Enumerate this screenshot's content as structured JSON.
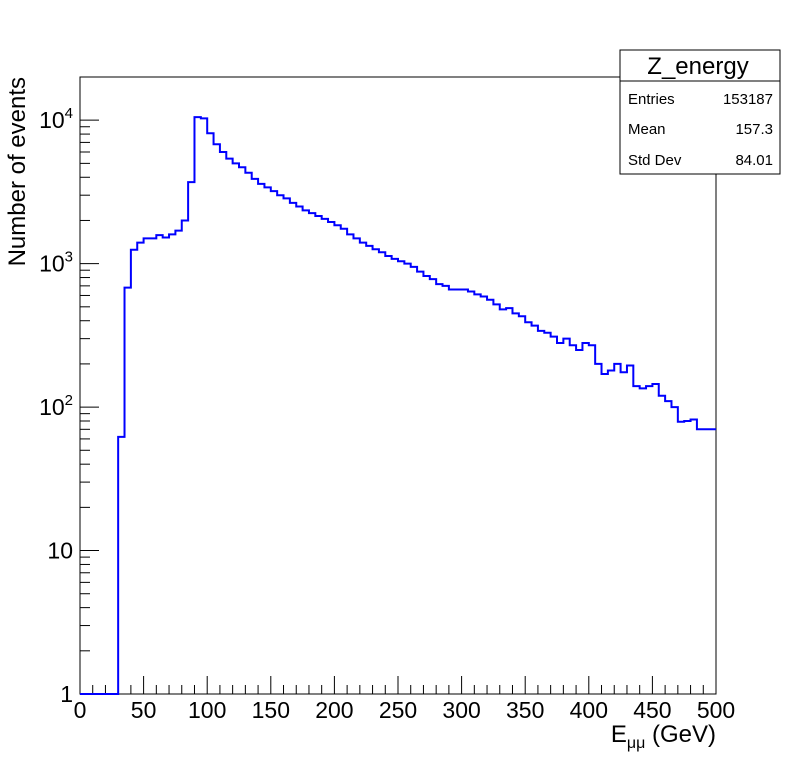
{
  "chart_data": {
    "type": "histogram",
    "title": "",
    "xlabel": "E",
    "xlabel_subscript": "μμ",
    "xlabel_unit": " (GeV)",
    "ylabel": "Number of events",
    "xlim": [
      0,
      500
    ],
    "ylim": [
      1,
      20000
    ],
    "y_scale": "log",
    "grid": false,
    "line_color": "#0000ff",
    "x_ticks": [
      0,
      50,
      100,
      150,
      200,
      250,
      300,
      350,
      400,
      450,
      500
    ],
    "y_ticks": [
      {
        "value": 1,
        "base": "1",
        "exp": ""
      },
      {
        "value": 10,
        "base": "10",
        "exp": ""
      },
      {
        "value": 100,
        "base": "10",
        "exp": "2"
      },
      {
        "value": 1000,
        "base": "10",
        "exp": "3"
      },
      {
        "value": 10000,
        "base": "10",
        "exp": "4"
      }
    ],
    "bin_width": 5,
    "values": [
      1,
      1,
      1,
      1,
      1,
      1,
      62,
      680,
      1250,
      1400,
      1500,
      1500,
      1580,
      1520,
      1600,
      1700,
      2000,
      3700,
      10500,
      10300,
      8100,
      6800,
      6000,
      5400,
      5000,
      4700,
      4300,
      3900,
      3600,
      3400,
      3200,
      3000,
      2850,
      2650,
      2500,
      2350,
      2250,
      2150,
      2050,
      1950,
      1850,
      1750,
      1600,
      1500,
      1400,
      1330,
      1260,
      1200,
      1130,
      1080,
      1040,
      1000,
      950,
      880,
      820,
      780,
      720,
      700,
      660,
      660,
      660,
      640,
      610,
      590,
      560,
      520,
      480,
      490,
      450,
      430,
      390,
      370,
      340,
      330,
      310,
      280,
      300,
      270,
      250,
      280,
      270,
      200,
      170,
      180,
      200,
      175,
      195,
      140,
      135,
      140,
      145,
      120,
      110,
      100,
      79,
      80,
      82,
      70,
      70,
      70
    ]
  },
  "stats_box": {
    "title": "Z_energy",
    "rows": [
      {
        "label": "Entries",
        "value": "153187"
      },
      {
        "label": "Mean",
        "value": "157.3"
      },
      {
        "label": "Std Dev",
        "value": "84.01"
      }
    ]
  }
}
